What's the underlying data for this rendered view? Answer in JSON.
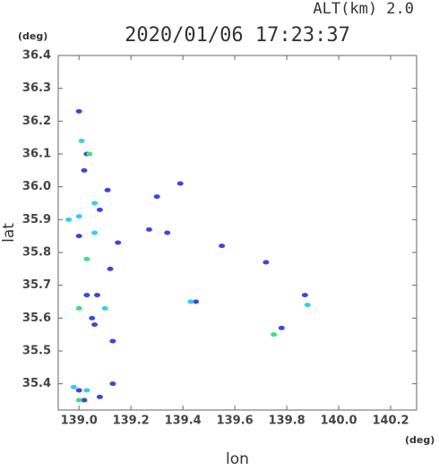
{
  "chart_data": {
    "type": "scatter",
    "title": "2020/01/06 17:23:37",
    "subtitle": "ALT(km) 2.0",
    "x_label": "lon",
    "y_label": "lat",
    "x_unit": "(deg)",
    "y_unit": "(deg)",
    "xlim": [
      138.92,
      140.3
    ],
    "ylim": [
      35.32,
      36.4
    ],
    "xticks": [
      {
        "value": 139,
        "label": "139.0"
      },
      139.2,
      139.4,
      139.6,
      139.8,
      {
        "value": 140,
        "label": "140.0"
      },
      140.2
    ],
    "yticks": [
      35.4,
      35.5,
      35.6,
      35.7,
      35.8,
      35.9,
      {
        "value": 36,
        "label": "36.0"
      },
      36.1,
      36.2,
      36.3,
      36.4
    ],
    "series": [
      {
        "color": "#3b46e0",
        "x": [
          139.0,
          139.02,
          139.08,
          139.13,
          139.03,
          139.05,
          139.07,
          139.12,
          139.02,
          139.03,
          139.0,
          139.11,
          139.0,
          139.08,
          139.3,
          139.39,
          139.27,
          139.34,
          139.55,
          139.45,
          139.78,
          139.87,
          139.72,
          139.13,
          139.15,
          139.06
        ],
        "values": [
          35.38,
          35.35,
          35.36,
          35.4,
          35.67,
          35.6,
          35.67,
          35.75,
          36.05,
          36.1,
          36.23,
          35.99,
          35.85,
          35.93,
          35.97,
          36.01,
          35.87,
          35.86,
          35.82,
          35.65,
          35.57,
          35.67,
          35.77,
          35.53,
          35.83,
          35.58
        ]
      },
      {
        "color": "#36cdee",
        "x": [
          139.01,
          138.98,
          139.03,
          139.0,
          139.06,
          139.1,
          138.96,
          139.43,
          139.88,
          139.06
        ],
        "values": [
          36.14,
          35.39,
          35.38,
          35.91,
          35.95,
          35.63,
          35.9,
          35.65,
          35.64,
          35.86
        ]
      },
      {
        "color": "#3fe07a",
        "x": [
          139.0,
          139.03,
          139.04,
          139.75,
          139.0
        ],
        "values": [
          35.63,
          35.78,
          36.1,
          35.55,
          35.35
        ]
      }
    ]
  }
}
